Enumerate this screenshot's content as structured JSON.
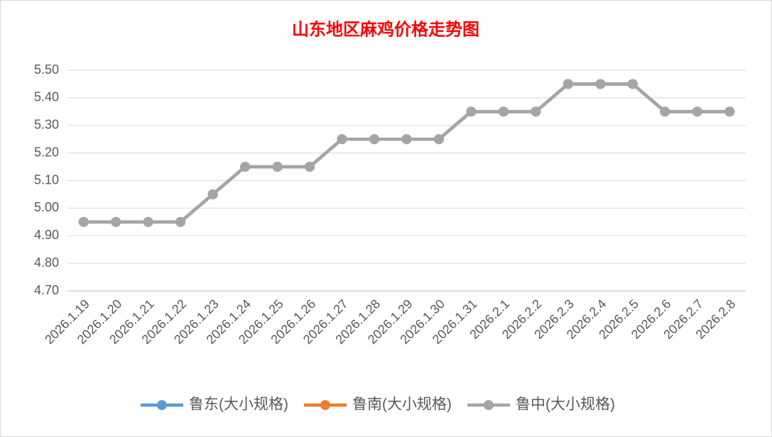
{
  "chart_data": {
    "type": "line",
    "title": "山东地区麻鸡价格走势图",
    "categories": [
      "2026.1.19",
      "2026.1.20",
      "2026.1.21",
      "2026.1.22",
      "2026.1.23",
      "2026.1.24",
      "2026.1.25",
      "2026.1.26",
      "2026.1.27",
      "2026.1.28",
      "2026.1.29",
      "2026.1.30",
      "2026.1.31",
      "2026.2.1",
      "2026.2.2",
      "2026.2.3",
      "2026.2.4",
      "2026.2.5",
      "2026.2.6",
      "2026.2.7",
      "2026.2.8"
    ],
    "series": [
      {
        "name": "鲁东(大小规格)",
        "color": "#5b9bd5",
        "values": [
          4.95,
          4.95,
          4.95,
          4.95,
          5.05,
          5.15,
          5.15,
          5.15,
          5.25,
          5.25,
          5.25,
          5.25,
          5.35,
          5.35,
          5.35,
          5.45,
          5.45,
          5.45,
          5.35,
          5.35,
          5.35
        ]
      },
      {
        "name": "鲁南(大小规格)",
        "color": "#ed7d31",
        "values": [
          4.95,
          4.95,
          4.95,
          4.95,
          5.05,
          5.15,
          5.15,
          5.15,
          5.25,
          5.25,
          5.25,
          5.25,
          5.35,
          5.35,
          5.35,
          5.45,
          5.45,
          5.45,
          5.35,
          5.35,
          5.35
        ]
      },
      {
        "name": "鲁中(大小规格)",
        "color": "#a5a5a5",
        "values": [
          4.95,
          4.95,
          4.95,
          4.95,
          5.05,
          5.15,
          5.15,
          5.15,
          5.25,
          5.25,
          5.25,
          5.25,
          5.35,
          5.35,
          5.35,
          5.45,
          5.45,
          5.45,
          5.35,
          5.35,
          5.35
        ]
      }
    ],
    "ylim": [
      4.7,
      5.5
    ],
    "yticks": [
      {
        "value": 4.7,
        "label": "4.70"
      },
      {
        "value": 4.8,
        "label": "4.80"
      },
      {
        "value": 4.9,
        "label": "4.90"
      },
      {
        "value": 5.0,
        "label": "5.00"
      },
      {
        "value": 5.1,
        "label": "5.10"
      },
      {
        "value": 5.2,
        "label": "5.20"
      },
      {
        "value": 5.3,
        "label": "5.30"
      },
      {
        "value": 5.4,
        "label": "5.40"
      },
      {
        "value": 5.5,
        "label": "5.50"
      }
    ],
    "grid": true,
    "legend": "bottom"
  }
}
